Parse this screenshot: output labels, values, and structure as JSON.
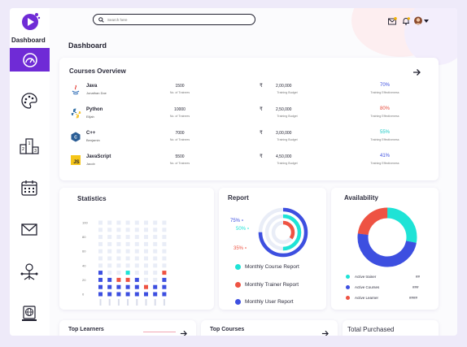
{
  "app": {
    "brand": "Dashboard",
    "page_title": "Dashboard"
  },
  "search": {
    "placeholder": "Search here"
  },
  "colors": {
    "accent": "#6f2bd6",
    "blue": "#3d4fe0",
    "teal": "#1ee3d6",
    "red": "#ee5343",
    "pale": "#e9edf7",
    "pct_blue": "#3d4fe0",
    "pct_red": "#e64a3b",
    "pct_teal": "#17c9c4"
  },
  "sidebar": {
    "items": [
      {
        "icon": "speedometer-icon",
        "active": true
      },
      {
        "icon": "palette-icon"
      },
      {
        "icon": "podium-icon"
      },
      {
        "icon": "calendar-icon"
      },
      {
        "icon": "mail-icon"
      },
      {
        "icon": "user-network-icon"
      },
      {
        "icon": "globe-desktop-icon"
      }
    ]
  },
  "courses": {
    "title": "Courses Overview",
    "rows": [
      {
        "name": "Java",
        "instructor": "Jonathan Doe",
        "trainees": "1500",
        "trainees_label": "No. of Trainees",
        "rupee": "₹",
        "budget": "2,00,000",
        "budget_label": "Training Budget",
        "effectiveness": "70%",
        "effectiveness_label": "Training Effectiveness",
        "tone": "blue"
      },
      {
        "name": "Python",
        "instructor": "Elijah",
        "trainees": "10000",
        "trainees_label": "No. of Trainees",
        "rupee": "₹",
        "budget": "2,50,000",
        "budget_label": "Training Budget",
        "effectiveness": "80%",
        "effectiveness_label": "Training Effectiveness",
        "tone": "red"
      },
      {
        "name": "C++",
        "instructor": "Benjamin",
        "trainees": "7000",
        "trainees_label": "No. of Trainees",
        "rupee": "₹",
        "budget": "3,00,000",
        "budget_label": "Training Budget",
        "effectiveness": "55%",
        "effectiveness_label": "Training Effectiveness",
        "tone": "teal"
      },
      {
        "name": "JavaScript",
        "instructor": "Jacob",
        "trainees": "5500",
        "trainees_label": "No. of Trainees",
        "rupee": "₹",
        "budget": "4,50,000",
        "budget_label": "Training Budget",
        "effectiveness": "41%",
        "effectiveness_label": "Training Effectiveness",
        "tone": "blue"
      }
    ]
  },
  "chart_data": [
    {
      "type": "heatmap",
      "title": "Statistics",
      "y_ticks": [
        "100",
        "80",
        "60",
        "40",
        "20",
        "0"
      ],
      "ylim": [
        0,
        100
      ],
      "columns": 8,
      "column_labels": [
        "",
        "",
        "",
        "",
        "",
        "",
        "",
        ""
      ],
      "series": [
        {
          "color": "blue",
          "values": [
            40,
            30,
            20,
            20,
            30,
            10,
            20,
            30
          ]
        },
        {
          "color": "red",
          "values": [
            0,
            0,
            10,
            10,
            0,
            10,
            0,
            10
          ]
        },
        {
          "color": "teal",
          "values": [
            0,
            0,
            0,
            10,
            0,
            0,
            0,
            0
          ]
        }
      ]
    },
    {
      "type": "pie",
      "title": "Report",
      "rings": [
        {
          "name": "Monthly User Report",
          "value": 75,
          "label": "75%",
          "color": "blue"
        },
        {
          "name": "Monthly Course Report",
          "value": 50,
          "label": "50%",
          "color": "teal"
        },
        {
          "name": "Monthly Trainer Report",
          "value": 35,
          "label": "35%",
          "color": "red"
        }
      ]
    },
    {
      "type": "pie",
      "title": "Availability",
      "slices": [
        {
          "name": "Active trainer",
          "value": 28,
          "display": "##",
          "color": "teal"
        },
        {
          "name": "Active Courses",
          "value": 49,
          "display": "###",
          "color": "blue"
        },
        {
          "name": "Active Learner",
          "value": 23,
          "display": "####",
          "color": "red"
        }
      ]
    }
  ],
  "report": {
    "title": "Report",
    "legend": [
      {
        "label": "Monthly Course Report",
        "color": "teal"
      },
      {
        "label": "Monthly Trainer Report",
        "color": "red"
      },
      {
        "label": "Monthly User Report",
        "color": "blue"
      }
    ]
  },
  "availability": {
    "title": "Availability",
    "legend": [
      {
        "label": "Active trainer",
        "value": "##",
        "color": "teal"
      },
      {
        "label": "Active Courses",
        "value": "###",
        "color": "blue"
      },
      {
        "label": "Active Learner",
        "value": "####",
        "color": "red"
      }
    ]
  },
  "bottom": {
    "top_learners": "Top Learners",
    "top_courses": "Top Courses",
    "total_purchased": "Total Purchased"
  }
}
